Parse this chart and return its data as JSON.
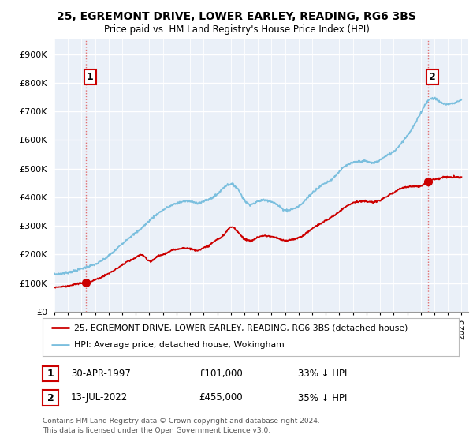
{
  "title1": "25, EGREMONT DRIVE, LOWER EARLEY, READING, RG6 3BS",
  "title2": "Price paid vs. HM Land Registry's House Price Index (HPI)",
  "xlim_start": 1995.0,
  "xlim_end": 2025.5,
  "ylim": [
    0,
    950000
  ],
  "yticks": [
    0,
    100000,
    200000,
    300000,
    400000,
    500000,
    600000,
    700000,
    800000,
    900000
  ],
  "ytick_labels": [
    "£0",
    "£100K",
    "£200K",
    "£300K",
    "£400K",
    "£500K",
    "£600K",
    "£700K",
    "£800K",
    "£900K"
  ],
  "sale1_x": 1997.33,
  "sale1_y": 101000,
  "sale2_x": 2022.54,
  "sale2_y": 455000,
  "hpi_color": "#7bbfde",
  "sale_color": "#cc0000",
  "vline_color": "#e06060",
  "background_color": "#eaf0f8",
  "grid_color": "#ffffff",
  "legend_label1": "25, EGREMONT DRIVE, LOWER EARLEY, READING, RG6 3BS (detached house)",
  "legend_label2": "HPI: Average price, detached house, Wokingham",
  "table_row1": [
    "1",
    "30-APR-1997",
    "£101,000",
    "33% ↓ HPI"
  ],
  "table_row2": [
    "2",
    "13-JUL-2022",
    "£455,000",
    "35% ↓ HPI"
  ],
  "footnote": "Contains HM Land Registry data © Crown copyright and database right 2024.\nThis data is licensed under the Open Government Licence v3.0.",
  "xticks": [
    1995,
    1996,
    1997,
    1998,
    1999,
    2000,
    2001,
    2002,
    2003,
    2004,
    2005,
    2006,
    2007,
    2008,
    2009,
    2010,
    2011,
    2012,
    2013,
    2014,
    2015,
    2016,
    2017,
    2018,
    2019,
    2020,
    2021,
    2022,
    2023,
    2024,
    2025
  ],
  "hpi_points": [
    [
      1995.0,
      130000
    ],
    [
      1995.5,
      133000
    ],
    [
      1996.0,
      137000
    ],
    [
      1996.5,
      143000
    ],
    [
      1997.0,
      150000
    ],
    [
      1997.5,
      158000
    ],
    [
      1998.0,
      165000
    ],
    [
      1998.5,
      178000
    ],
    [
      1999.0,
      195000
    ],
    [
      1999.5,
      215000
    ],
    [
      2000.0,
      238000
    ],
    [
      2000.5,
      258000
    ],
    [
      2001.0,
      275000
    ],
    [
      2001.5,
      295000
    ],
    [
      2002.0,
      318000
    ],
    [
      2002.5,
      338000
    ],
    [
      2003.0,
      355000
    ],
    [
      2003.5,
      368000
    ],
    [
      2004.0,
      378000
    ],
    [
      2004.5,
      385000
    ],
    [
      2005.0,
      385000
    ],
    [
      2005.5,
      380000
    ],
    [
      2006.0,
      385000
    ],
    [
      2006.5,
      395000
    ],
    [
      2007.0,
      410000
    ],
    [
      2007.5,
      435000
    ],
    [
      2008.0,
      445000
    ],
    [
      2008.5,
      430000
    ],
    [
      2009.0,
      390000
    ],
    [
      2009.5,
      375000
    ],
    [
      2010.0,
      385000
    ],
    [
      2010.5,
      390000
    ],
    [
      2011.0,
      385000
    ],
    [
      2011.5,
      370000
    ],
    [
      2012.0,
      355000
    ],
    [
      2012.5,
      358000
    ],
    [
      2013.0,
      368000
    ],
    [
      2013.5,
      390000
    ],
    [
      2014.0,
      415000
    ],
    [
      2014.5,
      435000
    ],
    [
      2015.0,
      450000
    ],
    [
      2015.5,
      465000
    ],
    [
      2016.0,
      490000
    ],
    [
      2016.5,
      510000
    ],
    [
      2017.0,
      520000
    ],
    [
      2017.5,
      525000
    ],
    [
      2018.0,
      525000
    ],
    [
      2018.5,
      520000
    ],
    [
      2019.0,
      530000
    ],
    [
      2019.5,
      545000
    ],
    [
      2020.0,
      560000
    ],
    [
      2020.5,
      585000
    ],
    [
      2021.0,
      615000
    ],
    [
      2021.5,
      650000
    ],
    [
      2022.0,
      695000
    ],
    [
      2022.5,
      735000
    ],
    [
      2023.0,
      745000
    ],
    [
      2023.5,
      730000
    ],
    [
      2024.0,
      725000
    ],
    [
      2024.5,
      730000
    ],
    [
      2025.0,
      740000
    ]
  ],
  "sale_points": [
    [
      1995.0,
      85000
    ],
    [
      1995.5,
      87000
    ],
    [
      1996.0,
      90000
    ],
    [
      1996.5,
      95000
    ],
    [
      1997.0,
      99000
    ],
    [
      1997.33,
      101000
    ],
    [
      1997.5,
      103000
    ],
    [
      1998.0,
      111000
    ],
    [
      1998.5,
      121000
    ],
    [
      1999.0,
      133000
    ],
    [
      1999.5,
      147000
    ],
    [
      2000.0,
      163000
    ],
    [
      2000.5,
      177000
    ],
    [
      2001.0,
      188000
    ],
    [
      2001.5,
      198000
    ],
    [
      2002.0,
      175000
    ],
    [
      2002.5,
      190000
    ],
    [
      2003.0,
      200000
    ],
    [
      2003.5,
      210000
    ],
    [
      2004.0,
      218000
    ],
    [
      2004.5,
      222000
    ],
    [
      2005.0,
      220000
    ],
    [
      2005.5,
      215000
    ],
    [
      2006.0,
      222000
    ],
    [
      2006.5,
      235000
    ],
    [
      2007.0,
      252000
    ],
    [
      2007.5,
      268000
    ],
    [
      2008.0,
      295000
    ],
    [
      2008.5,
      280000
    ],
    [
      2009.0,
      255000
    ],
    [
      2009.5,
      248000
    ],
    [
      2010.0,
      260000
    ],
    [
      2010.5,
      265000
    ],
    [
      2011.0,
      262000
    ],
    [
      2011.5,
      255000
    ],
    [
      2012.0,
      248000
    ],
    [
      2012.5,
      252000
    ],
    [
      2013.0,
      258000
    ],
    [
      2013.5,
      272000
    ],
    [
      2014.0,
      290000
    ],
    [
      2014.5,
      305000
    ],
    [
      2015.0,
      318000
    ],
    [
      2015.5,
      332000
    ],
    [
      2016.0,
      350000
    ],
    [
      2016.5,
      368000
    ],
    [
      2017.0,
      380000
    ],
    [
      2017.5,
      385000
    ],
    [
      2018.0,
      385000
    ],
    [
      2018.5,
      382000
    ],
    [
      2019.0,
      390000
    ],
    [
      2019.5,
      402000
    ],
    [
      2020.0,
      415000
    ],
    [
      2020.5,
      430000
    ],
    [
      2021.0,
      435000
    ],
    [
      2021.5,
      438000
    ],
    [
      2022.0,
      440000
    ],
    [
      2022.54,
      455000
    ],
    [
      2022.7,
      460000
    ],
    [
      2023.0,
      462000
    ],
    [
      2023.5,
      468000
    ],
    [
      2024.0,
      470000
    ],
    [
      2024.5,
      470000
    ],
    [
      2025.0,
      470000
    ]
  ]
}
